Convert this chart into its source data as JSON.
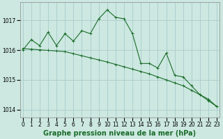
{
  "xlabel": "Graphe pression niveau de la mer (hPa)",
  "bg_color": "#cce8e0",
  "grid_color": "#aacccc",
  "line_color": "#1a6b2a",
  "x_values": [
    0,
    1,
    2,
    3,
    4,
    5,
    6,
    7,
    8,
    9,
    10,
    11,
    12,
    13,
    14,
    15,
    16,
    17,
    18,
    19,
    20,
    21,
    22,
    23
  ],
  "y_main": [
    1016.0,
    1016.35,
    1016.15,
    1016.6,
    1016.15,
    1016.55,
    1016.3,
    1016.65,
    1016.55,
    1017.05,
    1017.35,
    1017.1,
    1017.05,
    1016.55,
    1015.55,
    1015.55,
    1015.4,
    1015.9,
    1015.15,
    1015.1,
    1014.8,
    1014.5,
    1014.35,
    1014.1
  ],
  "y_smooth": [
    1016.05,
    1016.03,
    1016.01,
    1015.99,
    1015.97,
    1015.95,
    1015.88,
    1015.81,
    1015.74,
    1015.67,
    1015.6,
    1015.52,
    1015.44,
    1015.36,
    1015.28,
    1015.2,
    1015.1,
    1015.0,
    1014.9,
    1014.8,
    1014.65,
    1014.5,
    1014.3,
    1014.1
  ],
  "ylim": [
    1013.75,
    1017.6
  ],
  "yticks": [
    1014,
    1015,
    1016,
    1017
  ],
  "xticks": [
    0,
    1,
    2,
    3,
    4,
    5,
    6,
    7,
    8,
    9,
    10,
    11,
    12,
    13,
    14,
    15,
    16,
    17,
    18,
    19,
    20,
    21,
    22,
    23
  ],
  "tick_fontsize": 5.5,
  "xlabel_fontsize": 7,
  "fig_width": 3.2,
  "fig_height": 2.0,
  "dpi": 100
}
